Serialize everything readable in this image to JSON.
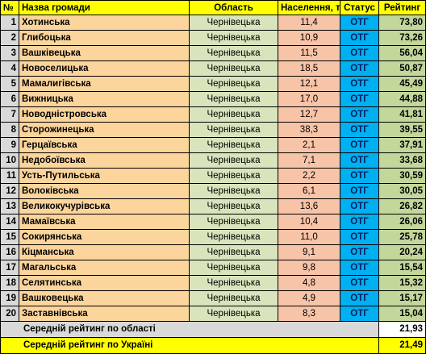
{
  "header": [
    "№",
    "Назва громади",
    "Область",
    "Населення, т",
    "Статус",
    "Рейтинг"
  ],
  "rows": [
    [
      "1",
      "Хотинська",
      "Чернівецька",
      "11,4",
      "ОТГ",
      "73,80"
    ],
    [
      "2",
      "Глибоцька",
      "Чернівецька",
      "10,9",
      "ОТГ",
      "73,26"
    ],
    [
      "3",
      "Вашківецька",
      "Чернівецька",
      "11,5",
      "ОТГ",
      "56,04"
    ],
    [
      "4",
      "Новоселицька",
      "Чернівецька",
      "18,5",
      "ОТГ",
      "50,87"
    ],
    [
      "5",
      "Мамалигівська",
      "Чернівецька",
      "12,1",
      "ОТГ",
      "45,49"
    ],
    [
      "6",
      "Вижницька",
      "Чернівецька",
      "17,0",
      "ОТГ",
      "44,88"
    ],
    [
      "7",
      "Новодністровська",
      "Чернівецька",
      "12,7",
      "ОТГ",
      "41,81"
    ],
    [
      "8",
      "Сторожинецька",
      "Чернівецька",
      "38,3",
      "ОТГ",
      "39,55"
    ],
    [
      "9",
      "Герцаївська",
      "Чернівецька",
      "2,1",
      "ОТГ",
      "37,91"
    ],
    [
      "10",
      "Недобоївська",
      "Чернівецька",
      "7,1",
      "ОТГ",
      "33,68"
    ],
    [
      "11",
      "Усть-Путильська",
      "Чернівецька",
      "2,2",
      "ОТГ",
      "30,59"
    ],
    [
      "12",
      "Волоківська",
      "Чернівецька",
      "6,1",
      "ОТГ",
      "30,05"
    ],
    [
      "13",
      "Великокучурівська",
      "Чернівецька",
      "13,6",
      "ОТГ",
      "26,82"
    ],
    [
      "14",
      "Мамаївська",
      "Чернівецька",
      "10,4",
      "ОТГ",
      "26,06"
    ],
    [
      "15",
      "Сокирянська",
      "Чернівецька",
      "11,0",
      "ОТГ",
      "25,78"
    ],
    [
      "16",
      "Кіцманська",
      "Чернівецька",
      "9,1",
      "ОТГ",
      "20,24"
    ],
    [
      "17",
      "Магальська",
      "Чернівецька",
      "9,8",
      "ОТГ",
      "15,54"
    ],
    [
      "18",
      "Селятинська",
      "Чернівецька",
      "4,8",
      "ОТГ",
      "15,32"
    ],
    [
      "19",
      "Вашковецька",
      "Чернівецька",
      "4,9",
      "ОТГ",
      "15,17"
    ],
    [
      "20",
      "Заставнівська",
      "Чернівецька",
      "8,3",
      "ОТГ",
      "15,04"
    ]
  ],
  "summary": [
    {
      "label": "Середній рейтинг по області",
      "value": "21,93"
    },
    {
      "label": "Середній рейтинг по Україні",
      "value": "21,49"
    }
  ]
}
